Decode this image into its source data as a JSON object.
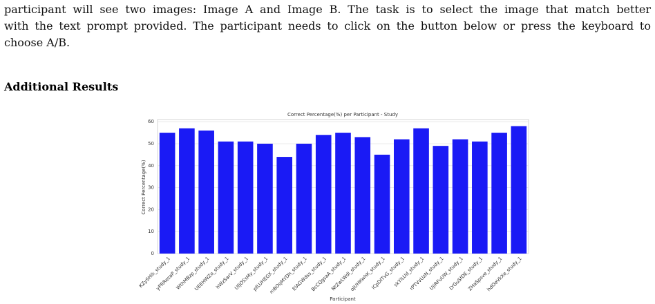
{
  "document": {
    "paragraph": [
      "participant will see two images: Image A and Image B. The task is to select the image that match better",
      "with the text prompt provided. The participant needs to click on the button below or press the keyboard to",
      "choose A/B."
    ],
    "heading": "Additional Results"
  },
  "chart_data": {
    "type": "bar",
    "title": "Correct Percentage(%) per Participant - Study",
    "x_label": "Participant",
    "y_label": "Correct Percentage(%)",
    "categories": [
      "KZySHlk_study_1",
      "yPRRezaP_study_1",
      "WthMBzp_study_1",
      "UEEHWZo_study_1",
      "hWzSarV_study_1",
      "UfjOSsMy_study_1",
      "pfLUHEGX_study_1",
      "mBOqMYDh_study_1",
      "ElAGWdss_study_1",
      "BcCQgsaA_study_1",
      "NtZwLWdl_study_1",
      "oJUHKwhK_study_1",
      "lCpDITvG_study_1",
      "skYlLUd_study_1",
      "rPTVvUzN_study_1",
      "UjiRFuUW_study_1",
      "LYGuSfDE_study_1",
      "ZHaSpsve_study_1",
      "hdOeVkXe_study_1"
    ],
    "values": [
      55,
      57,
      56,
      51,
      51,
      50,
      44,
      50,
      54,
      55,
      53,
      45,
      52,
      57,
      49,
      52,
      51,
      55,
      58
    ],
    "color": "#1a1af5",
    "ylim": [
      0,
      61
    ],
    "yticks": [
      0,
      10,
      20,
      30,
      40,
      50,
      60
    ],
    "grid": true
  }
}
